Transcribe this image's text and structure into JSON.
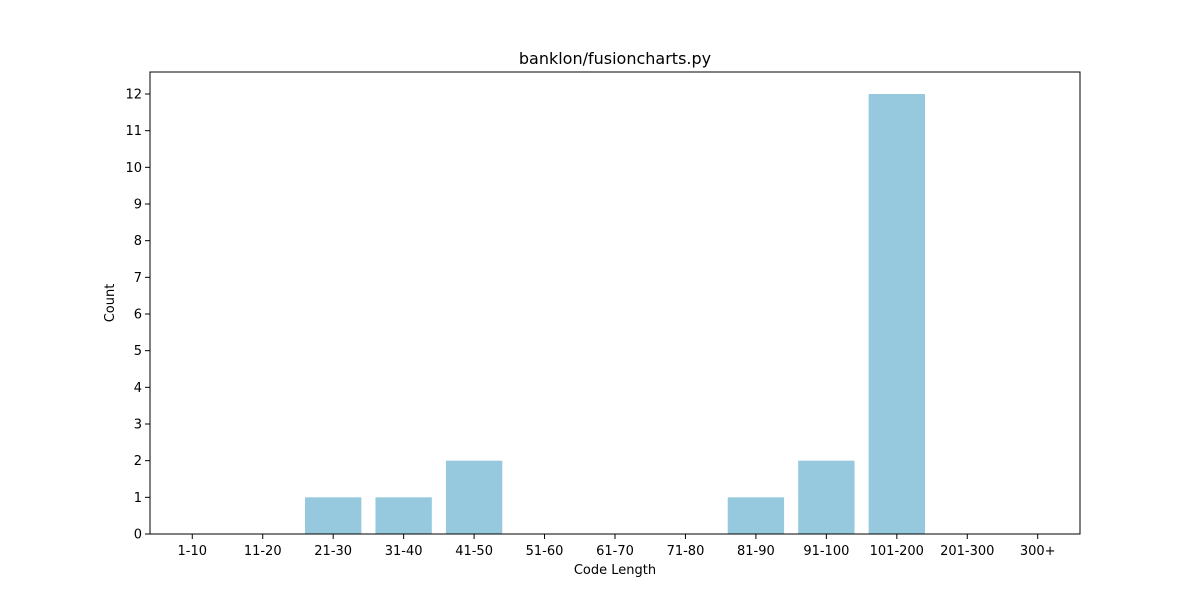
{
  "chart_data": {
    "type": "bar",
    "title": "banklon/fusioncharts.py",
    "xlabel": "Code Length",
    "ylabel": "Count",
    "categories": [
      "1-10",
      "11-20",
      "21-30",
      "31-40",
      "41-50",
      "51-60",
      "61-70",
      "71-80",
      "81-90",
      "91-100",
      "101-200",
      "201-300",
      "300+"
    ],
    "values": [
      0,
      0,
      1,
      1,
      2,
      0,
      0,
      0,
      1,
      2,
      12,
      0,
      0
    ],
    "ylim": [
      0,
      12.6
    ],
    "yticks": [
      0,
      1,
      2,
      3,
      4,
      5,
      6,
      7,
      8,
      9,
      10,
      11,
      12
    ],
    "bar_color": "#96c9dd",
    "grid": false
  }
}
